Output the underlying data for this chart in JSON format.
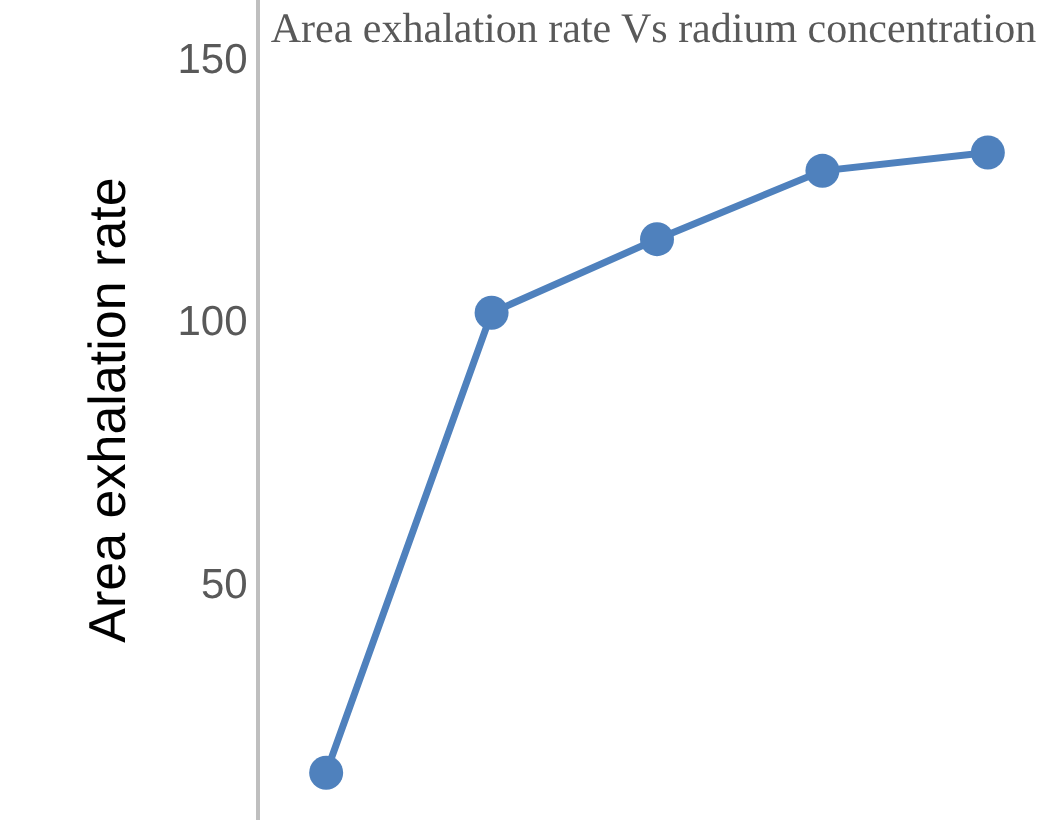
{
  "chart_data": {
    "type": "line",
    "title": "Area exhalation rate Vs radium concentration",
    "ylabel": "Area exhalation rate",
    "categories": [
      null,
      null,
      null,
      null,
      null
    ],
    "series": [
      {
        "color": "#4f81bd",
        "values": [
          14,
          101.5,
          115.5,
          128.5,
          132
        ]
      }
    ],
    "ylim": [
      5,
      161
    ],
    "yticks": [
      50,
      100,
      150
    ],
    "tick_labels": "y",
    "grid": false,
    "legend": false,
    "marker": "circle",
    "line_style": "solid"
  }
}
